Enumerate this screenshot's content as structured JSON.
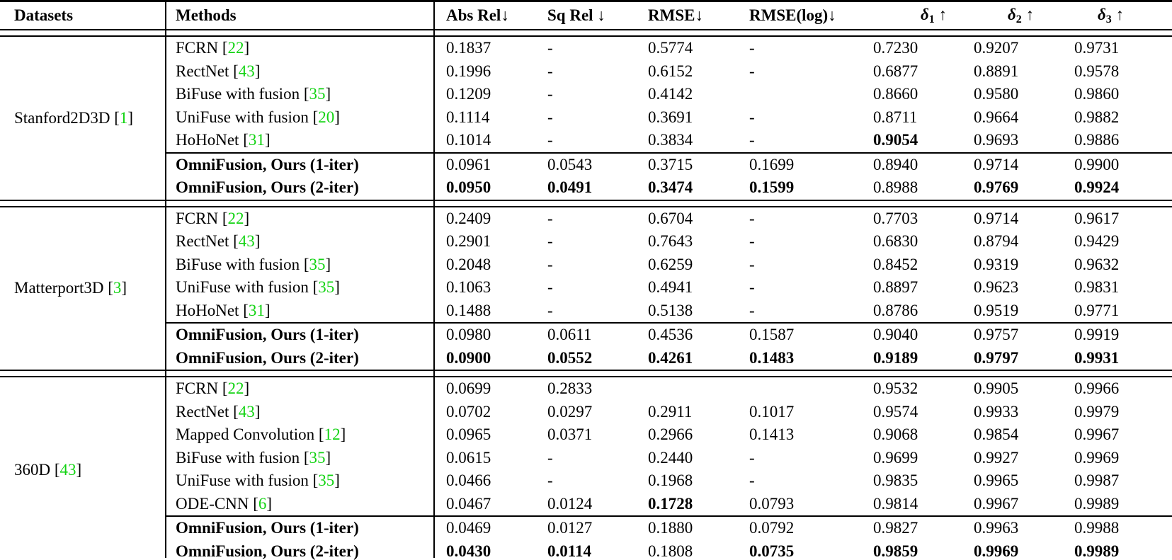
{
  "colors": {
    "citation": "#12d312",
    "text": "#000000",
    "background": "#ffffff"
  },
  "citation_brackets": {
    "open": "[",
    "close": "]"
  },
  "header": {
    "columns": [
      {
        "id": "datasets",
        "label": "Datasets"
      },
      {
        "id": "methods",
        "label": "Methods"
      },
      {
        "id": "abs-rel",
        "label": "Abs Rel",
        "arrow": "↓",
        "space_before_arrow": false
      },
      {
        "id": "sq-rel",
        "label": "Sq Rel",
        "arrow": "↓",
        "space_before_arrow": true
      },
      {
        "id": "rmse",
        "label": "RMSE",
        "arrow": "↓",
        "space_before_arrow": false
      },
      {
        "id": "rmse-log",
        "label": "RMSE(log)",
        "arrow": "↓",
        "space_before_arrow": false
      },
      {
        "id": "delta1",
        "symbol": "δ",
        "sub": "1",
        "arrow": "↑"
      },
      {
        "id": "delta2",
        "symbol": "δ",
        "sub": "2",
        "arrow": "↑"
      },
      {
        "id": "delta3",
        "symbol": "δ",
        "sub": "3",
        "arrow": "↑"
      }
    ]
  },
  "sections": [
    {
      "dataset": {
        "name": "Stanford2D3D",
        "cite": "1"
      },
      "rows": [
        {
          "method": "FCRN",
          "cite": "22",
          "values": [
            "0.1837",
            "-",
            "0.5774",
            "-",
            "0.7230",
            "0.9207",
            "0.9731"
          ],
          "bold_values": []
        },
        {
          "method": "RectNet",
          "cite": "43",
          "values": [
            "0.1996",
            "-",
            "0.6152",
            "-",
            "0.6877",
            "0.8891",
            "0.9578"
          ],
          "bold_values": []
        },
        {
          "method": "BiFuse with fusion",
          "cite": "35",
          "values": [
            "0.1209",
            "-",
            "0.4142",
            "",
            "0.8660",
            "0.9580",
            "0.9860"
          ],
          "bold_values": []
        },
        {
          "method": "UniFuse with fusion",
          "cite": "20",
          "values": [
            "0.1114",
            "-",
            "0.3691",
            "-",
            "0.8711",
            "0.9664",
            "0.9882"
          ],
          "bold_values": []
        },
        {
          "method": "HoHoNet",
          "cite": "31",
          "values": [
            "0.1014",
            "-",
            "0.3834",
            "-",
            "0.9054",
            "0.9693",
            "0.9886"
          ],
          "bold_values": [
            4
          ]
        }
      ],
      "ours": [
        {
          "method": "OmniFusion, Ours (1-iter)",
          "cite": null,
          "values": [
            "0.0961",
            "0.0543",
            "0.3715",
            "0.1699",
            "0.8940",
            "0.9714",
            "0.9900"
          ],
          "bold_values": []
        },
        {
          "method": "OmniFusion, Ours (2-iter)",
          "cite": null,
          "values": [
            "0.0950",
            "0.0491",
            "0.3474",
            "0.1599",
            "0.8988",
            "0.9769",
            "0.9924"
          ],
          "bold_values": [
            0,
            1,
            2,
            3,
            5,
            6
          ]
        }
      ]
    },
    {
      "dataset": {
        "name": "Matterport3D",
        "cite": "3"
      },
      "rows": [
        {
          "method": "FCRN",
          "cite": "22",
          "values": [
            "0.2409",
            "-",
            "0.6704",
            "-",
            "0.7703",
            "0.9714",
            "0.9617"
          ],
          "bold_values": []
        },
        {
          "method": "RectNet",
          "cite": "43",
          "values": [
            "0.2901",
            "-",
            "0.7643",
            "-",
            "0.6830",
            "0.8794",
            "0.9429"
          ],
          "bold_values": []
        },
        {
          "method": "BiFuse with fusion",
          "cite": "35",
          "values": [
            "0.2048",
            "-",
            "0.6259",
            "-",
            "0.8452",
            "0.9319",
            "0.9632"
          ],
          "bold_values": []
        },
        {
          "method": "UniFuse with fusion",
          "cite": "35",
          "values": [
            "0.1063",
            "-",
            "0.4941",
            "-",
            "0.8897",
            "0.9623",
            "0.9831"
          ],
          "bold_values": []
        },
        {
          "method": "HoHoNet",
          "cite": "31",
          "values": [
            "0.1488",
            "-",
            "0.5138",
            "-",
            "0.8786",
            "0.9519",
            "0.9771"
          ],
          "bold_values": []
        }
      ],
      "ours": [
        {
          "method": "OmniFusion, Ours (1-iter)",
          "cite": null,
          "values": [
            "0.0980",
            "0.0611",
            "0.4536",
            "0.1587",
            "0.9040",
            "0.9757",
            "0.9919"
          ],
          "bold_values": []
        },
        {
          "method": "OmniFusion, Ours (2-iter)",
          "cite": null,
          "values": [
            "0.0900",
            "0.0552",
            "0.4261",
            "0.1483",
            "0.9189",
            "0.9797",
            "0.9931"
          ],
          "bold_values": [
            0,
            1,
            2,
            3,
            4,
            5,
            6
          ]
        }
      ]
    },
    {
      "dataset": {
        "name": "360D",
        "cite": "43"
      },
      "rows": [
        {
          "method": "FCRN",
          "cite": "22",
          "values": [
            "0.0699",
            "0.2833",
            "",
            "",
            "0.9532",
            "0.9905",
            "0.9966"
          ],
          "bold_values": []
        },
        {
          "method": "RectNet",
          "cite": "43",
          "values": [
            "0.0702",
            "0.0297",
            "0.2911",
            "0.1017",
            "0.9574",
            "0.9933",
            "0.9979"
          ],
          "bold_values": []
        },
        {
          "method": "Mapped Convolution",
          "cite": "12",
          "values": [
            "0.0965",
            "0.0371",
            "0.2966",
            "0.1413",
            "0.9068",
            "0.9854",
            "0.9967"
          ],
          "bold_values": []
        },
        {
          "method": "BiFuse with fusion",
          "cite": "35",
          "values": [
            "0.0615",
            "-",
            "0.2440",
            "-",
            "0.9699",
            "0.9927",
            "0.9969"
          ],
          "bold_values": []
        },
        {
          "method": "UniFuse with fusion",
          "cite": "35",
          "values": [
            "0.0466",
            "-",
            "0.1968",
            "-",
            "0.9835",
            "0.9965",
            "0.9987"
          ],
          "bold_values": []
        },
        {
          "method": "ODE-CNN",
          "cite": "6",
          "values": [
            "0.0467",
            "0.0124",
            "0.1728",
            "0.0793",
            "0.9814",
            "0.9967",
            "0.9989"
          ],
          "bold_values": [
            2
          ]
        }
      ],
      "ours": [
        {
          "method": "OmniFusion, Ours (1-iter)",
          "cite": null,
          "values": [
            "0.0469",
            "0.0127",
            "0.1880",
            "0.0792",
            "0.9827",
            "0.9963",
            "0.9988"
          ],
          "bold_values": []
        },
        {
          "method": "OmniFusion, Ours (2-iter)",
          "cite": null,
          "values": [
            "0.0430",
            "0.0114",
            "0.1808",
            "0.0735",
            "0.9859",
            "0.9969",
            "0.9989"
          ],
          "bold_values": [
            0,
            1,
            3,
            4,
            5,
            6
          ]
        }
      ]
    }
  ]
}
